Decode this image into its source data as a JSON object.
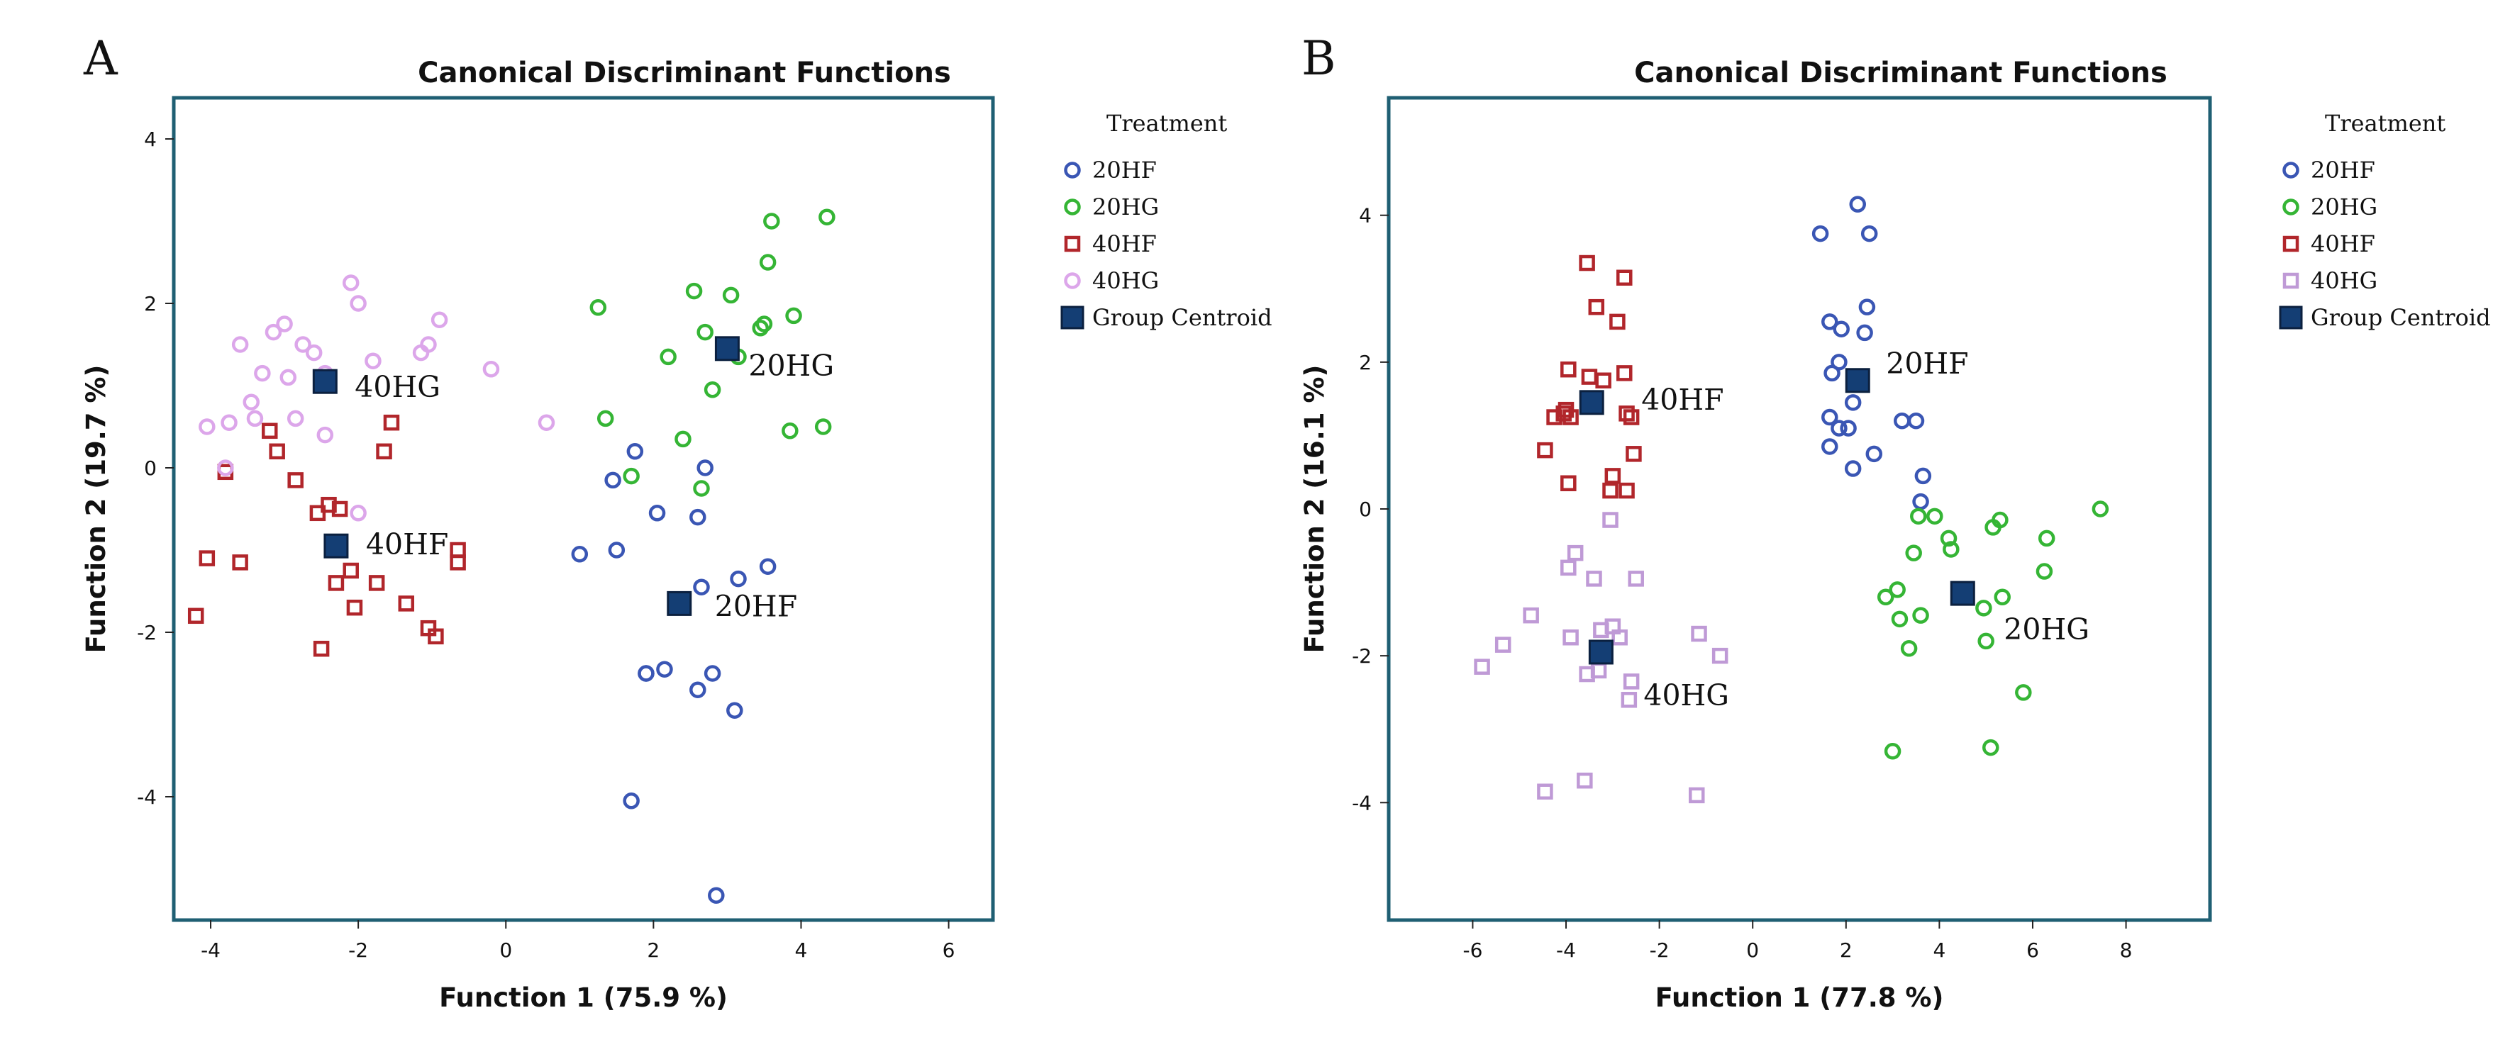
{
  "colors": {
    "20HF": "#3a56b4",
    "20HG": "#35b535",
    "40HF": "#b1262b",
    "40HG": "#dca6ea",
    "40HG_B": "#bf9ad6",
    "centroid_fill": "#143e74",
    "centroid_stroke": "#0b203f",
    "frame": "#1f5f73"
  },
  "chart_data": [
    {
      "panel": "A",
      "type": "scatter",
      "title": "Canonical Discriminant Functions",
      "xlabel": "Function 1 (75.9 %)",
      "ylabel": "Function 2 (19.7 %)",
      "xlim": [
        -4.5,
        6.6
      ],
      "ylim": [
        -5.5,
        4.5
      ],
      "xticks": [
        -4,
        -2,
        0,
        2,
        4,
        6
      ],
      "yticks": [
        -4,
        -2,
        0,
        2,
        4
      ],
      "xtick_labels": [
        "-4",
        "-2",
        "0",
        "2",
        "4",
        "6"
      ],
      "ytick_labels": [
        "-4",
        "-2",
        "0",
        "2",
        "4"
      ],
      "legend": {
        "title": "Treatment",
        "entries": [
          "20HF",
          "20HG",
          "40HF",
          "40HG",
          "Group Centroid"
        ]
      },
      "series": [
        {
          "name": "20HF",
          "marker": "circle",
          "color_key": "20HF",
          "x": [
            1.9,
            1.45,
            1.75,
            2.05,
            2.6,
            2.7,
            1.0,
            1.5,
            2.65,
            3.15,
            3.55,
            1.9,
            2.15,
            2.8,
            2.6,
            3.1,
            1.7,
            2.85
          ],
          "y": [
            -2.5,
            -0.15,
            0.2,
            -0.55,
            -0.6,
            0.0,
            -1.05,
            -1.0,
            -1.45,
            -1.35,
            -1.2,
            -2.5,
            -2.45,
            -2.5,
            -2.7,
            -2.95,
            -4.05,
            -5.2
          ]
        },
        {
          "name": "20HG",
          "marker": "circle",
          "color_key": "20HG",
          "x": [
            1.25,
            2.55,
            3.05,
            3.55,
            3.6,
            4.35,
            2.2,
            2.7,
            3.15,
            3.45,
            3.5,
            3.9,
            2.8,
            2.4,
            1.35,
            1.7,
            2.65,
            3.85,
            4.3
          ],
          "y": [
            1.95,
            2.15,
            2.1,
            2.5,
            3.0,
            3.05,
            1.35,
            1.65,
            1.35,
            1.7,
            1.75,
            1.85,
            0.95,
            0.35,
            0.6,
            -0.1,
            -0.25,
            0.45,
            0.5
          ]
        },
        {
          "name": "40HF",
          "marker": "square",
          "color_key": "40HF",
          "x": [
            -4.2,
            -4.05,
            -3.8,
            -3.6,
            -3.2,
            -3.1,
            -2.85,
            -2.55,
            -2.4,
            -2.3,
            -2.25,
            -2.1,
            -2.05,
            -1.75,
            -1.55,
            -1.65,
            -1.35,
            -1.05,
            -0.95,
            -0.65,
            -0.65,
            -2.5
          ],
          "y": [
            -1.8,
            -1.1,
            -0.05,
            -1.15,
            0.45,
            0.2,
            -0.15,
            -0.55,
            -0.45,
            -1.4,
            -0.5,
            -1.25,
            -1.7,
            -1.4,
            0.55,
            0.2,
            -1.65,
            -1.95,
            -2.05,
            -1.0,
            -1.15,
            -2.2
          ]
        },
        {
          "name": "40HG",
          "marker": "circle",
          "color_key": "40HG",
          "x": [
            -4.05,
            -3.75,
            -3.6,
            -3.45,
            -3.3,
            -3.15,
            -3.0,
            -2.75,
            -2.95,
            -2.6,
            -2.45,
            -2.1,
            -2.0,
            -1.8,
            -1.15,
            -1.05,
            -0.9,
            -0.2,
            0.55,
            -3.4,
            -2.85,
            -2.45,
            -2.0,
            -3.8
          ],
          "y": [
            0.5,
            0.55,
            1.5,
            0.8,
            1.15,
            1.65,
            1.75,
            1.5,
            1.1,
            1.4,
            1.15,
            2.25,
            2.0,
            1.3,
            1.4,
            1.5,
            1.8,
            1.2,
            0.55,
            0.6,
            0.6,
            0.4,
            -0.55,
            0.0
          ]
        }
      ],
      "centroids": [
        {
          "label": "40HG",
          "x": -2.45,
          "y": 1.05
        },
        {
          "label": "20HG",
          "x": 3.0,
          "y": 1.45
        },
        {
          "label": "40HF",
          "x": -2.3,
          "y": -0.95
        },
        {
          "label": "20HF",
          "x": 2.35,
          "y": -1.65
        }
      ]
    },
    {
      "panel": "B",
      "type": "scatter",
      "title": "Canonical Discriminant Functions",
      "xlabel": "Function 1 (77.8 %)",
      "ylabel": "Function 2 (16.1 %)",
      "xlim": [
        -7.8,
        9.8
      ],
      "ylim": [
        -5.6,
        5.6
      ],
      "xticks": [
        -6,
        -4,
        -2,
        0,
        2,
        4,
        6,
        8
      ],
      "yticks": [
        -4,
        -2,
        0,
        2,
        4
      ],
      "xtick_labels": [
        "-6",
        "-4",
        "-2",
        "0",
        "2",
        "4",
        "6",
        "8"
      ],
      "ytick_labels": [
        "-4",
        "-2",
        "0",
        "2",
        "4"
      ],
      "legend": {
        "title": "Treatment",
        "entries": [
          "20HF",
          "20HG",
          "40HF",
          "40HG",
          "Group Centroid"
        ]
      },
      "series": [
        {
          "name": "20HF",
          "marker": "circle",
          "color_key": "20HF",
          "x": [
            2.25,
            1.45,
            2.5,
            1.65,
            1.9,
            2.4,
            2.45,
            1.85,
            1.7,
            2.15,
            1.65,
            1.85,
            2.05,
            3.2,
            3.5,
            1.65,
            2.15,
            2.6,
            3.65,
            3.6
          ],
          "y": [
            4.15,
            3.75,
            3.75,
            2.55,
            2.45,
            2.4,
            2.75,
            2.0,
            1.85,
            1.45,
            1.25,
            1.1,
            1.1,
            1.2,
            1.2,
            0.85,
            0.55,
            0.75,
            0.45,
            0.1
          ]
        },
        {
          "name": "20HG",
          "marker": "circle",
          "color_key": "20HG",
          "x": [
            7.45,
            5.3,
            5.15,
            6.3,
            3.55,
            3.9,
            4.2,
            4.25,
            3.45,
            6.25,
            3.1,
            2.85,
            3.15,
            3.6,
            5.35,
            4.95,
            3.35,
            5.0,
            5.8,
            3.0,
            5.1
          ],
          "y": [
            0.0,
            -0.15,
            -0.25,
            -0.4,
            -0.1,
            -0.1,
            -0.4,
            -0.55,
            -0.6,
            -0.85,
            -1.1,
            -1.2,
            -1.5,
            -1.45,
            -1.2,
            -1.35,
            -1.9,
            -1.8,
            -2.5,
            -3.3,
            -3.25
          ]
        },
        {
          "name": "40HF",
          "marker": "square",
          "color_key": "40HF",
          "x": [
            -3.55,
            -3.35,
            -2.75,
            -3.95,
            -2.9,
            -3.5,
            -3.2,
            -2.75,
            -4.25,
            -4.0,
            -4.05,
            -3.9,
            -2.7,
            -2.6,
            -2.55,
            -4.45,
            -3.0,
            -2.7,
            -3.95,
            -3.05
          ],
          "y": [
            3.35,
            2.75,
            3.15,
            1.9,
            2.55,
            1.8,
            1.75,
            1.85,
            1.25,
            1.35,
            1.3,
            1.25,
            1.3,
            1.25,
            0.75,
            0.8,
            0.45,
            0.25,
            0.35,
            0.25
          ]
        },
        {
          "name": "40HG",
          "marker": "square",
          "color_key": "40HG_B",
          "x": [
            -3.05,
            -2.5,
            -3.95,
            -3.4,
            -3.8,
            -4.75,
            -5.35,
            -5.8,
            -3.9,
            -3.25,
            -3.0,
            -2.85,
            -1.15,
            -0.7,
            -3.55,
            -3.3,
            -2.6,
            -2.65,
            -4.45,
            -3.6,
            -1.2
          ],
          "y": [
            -0.15,
            -0.95,
            -0.8,
            -0.95,
            -0.6,
            -1.45,
            -1.85,
            -2.15,
            -1.75,
            -1.65,
            -1.6,
            -1.75,
            -1.7,
            -2.0,
            -2.25,
            -2.2,
            -2.35,
            -2.6,
            -3.85,
            -3.7,
            -3.9
          ]
        }
      ],
      "centroids": [
        {
          "label": "20HF",
          "x": 2.25,
          "y": 1.75
        },
        {
          "label": "40HF",
          "x": -3.45,
          "y": 1.45
        },
        {
          "label": "20HG",
          "x": 4.5,
          "y": -1.15
        },
        {
          "label": "40HG",
          "x": -3.25,
          "y": -1.95
        }
      ]
    }
  ]
}
